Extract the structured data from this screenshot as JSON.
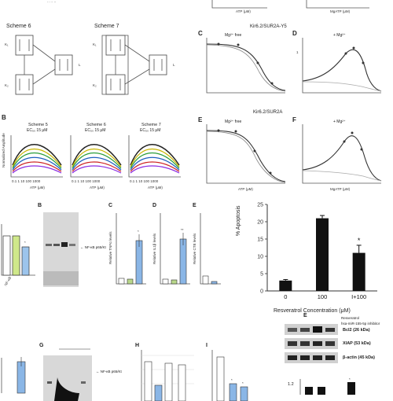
{
  "panel_top": {
    "scheme6": "Scheme 6",
    "scheme7": "Scheme 7",
    "kir_ys": "Kir6.2/SUR2A-Y5",
    "kir": "Kir6.2/SUR2A",
    "c_label": "C",
    "d_label": "D",
    "e_label": "E",
    "f_label": "F",
    "mg_atp": "Mg²⁺ free",
    "plus_mg": "+ Mg²⁺",
    "xlabel_atp": "ATP (μM)",
    "xlabel_mgatp": "MgATP (μM)"
  },
  "panel_b_schemes": {
    "letter": "B",
    "ylabel": "Normalized Amplitude",
    "xlabel": "ATP (μM)",
    "scheme5": "Scheme 5",
    "scheme6": "Scheme 6",
    "scheme7": "Scheme 7",
    "ec5": "EC₅₀ 15 μM",
    "ec6": "EC₅₀ 15 μM",
    "ec7": "EC₅₀ 15 μM"
  },
  "panel_mid": {
    "b": "B",
    "c": "C",
    "d": "D",
    "e": "E",
    "c_ylabel": "Relative TNFα levels",
    "d_ylabel": "Relative IL1β levels",
    "e_ylabel": "Relative CTB levels",
    "gel_label": "← NF-κB p65/Kt"
  },
  "apoptosis_chart": {
    "ylabel": "% Apoptosis",
    "xlabel": "Resveratrol Concentration (μM)",
    "star": "*"
  },
  "panel_bottom": {
    "g": "G",
    "h": "H",
    "i": "I",
    "e": "E",
    "gel_label": "← NF-κB p65/Kt",
    "resveratrol": "Resveratrol",
    "mirna": "hsa-miR-155-5p inhibitor",
    "bcl2": "Bcl2 (26 kDa)",
    "xiap": "XIAP (53 kDa)",
    "bactin": "β-actin (45 kDa)",
    "ytick_top": "1.2",
    "lanes_signs": [
      "-",
      "+",
      "-",
      "+"
    ],
    "lanes_signs2": [
      "-",
      "-",
      "+",
      "+"
    ]
  },
  "chart_data": {
    "type": "bar",
    "categories": [
      "0",
      "100",
      "I+100"
    ],
    "values": [
      3,
      21,
      11
    ],
    "errors": [
      0.3,
      0.8,
      2.2
    ],
    "ylabel": "% Apoptosis",
    "xlabel": "Resveratrol Concentration (μM)",
    "ylim": [
      0,
      25
    ],
    "colors": [
      "#111111",
      "#111111",
      "#111111"
    ]
  }
}
